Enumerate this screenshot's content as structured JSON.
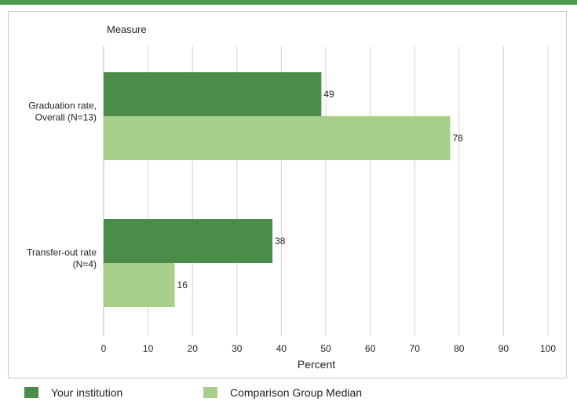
{
  "chart_data": {
    "type": "bar",
    "orientation": "horizontal",
    "y_axis_title": "Measure",
    "xlabel": "Percent",
    "categories": [
      "Graduation rate,\nOverall (N=13)",
      "Transfer-out rate\n(N=4)"
    ],
    "xlim": [
      0,
      100
    ],
    "xticks": [
      0,
      10,
      20,
      30,
      40,
      50,
      60,
      70,
      80,
      90,
      100
    ],
    "grid": true,
    "legend_position": "bottom",
    "series": [
      {
        "name": "Your institution",
        "values": [
          49,
          38
        ],
        "color": "#4a8c4a"
      },
      {
        "name": "Comparison Group Median",
        "values": [
          78,
          16
        ],
        "color": "#a8cf8a"
      }
    ]
  }
}
